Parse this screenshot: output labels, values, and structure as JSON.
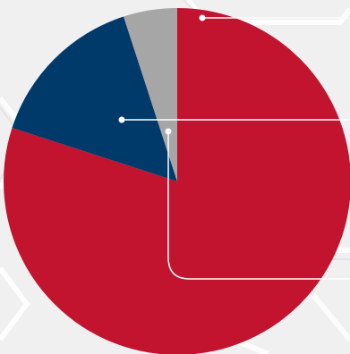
{
  "chart_data": {
    "type": "pie",
    "title": "",
    "slices": [
      {
        "label": "",
        "value": 80,
        "color": "#c2132f"
      },
      {
        "label": "",
        "value": 15,
        "color": "#003a6b"
      },
      {
        "label": "",
        "value": 5,
        "color": "#a6a6a6"
      }
    ],
    "start_angle_deg": 0,
    "direction": "clockwise",
    "legend": "none",
    "leader_lines": true
  },
  "colors": {
    "background": "#f0f0f1",
    "pattern": "#ffffff",
    "leader_line": "#ffffff"
  }
}
